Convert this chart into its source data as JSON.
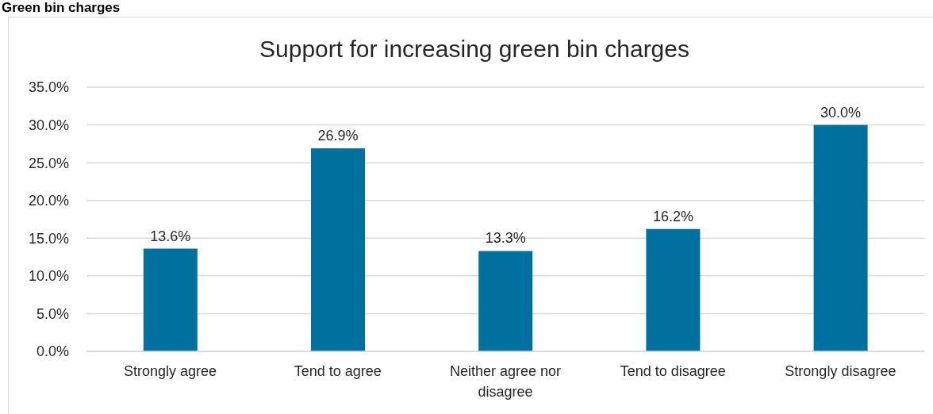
{
  "chart_data": {
    "type": "bar",
    "title": "Support for increasing green bin charges",
    "annotations": [
      "Green bin charges"
    ],
    "categories": [
      "Strongly agree",
      "Tend to agree",
      "Neither agree nor disagree",
      "Tend to disagree",
      "Strongly disagree"
    ],
    "values": [
      13.6,
      26.9,
      13.3,
      16.2,
      30.0
    ],
    "value_labels": [
      "13.6%",
      "26.9%",
      "13.3%",
      "16.2%",
      "30.0%"
    ],
    "color": "#00709f",
    "ylim": [
      0,
      35
    ],
    "yticks": [
      {
        "value": 0,
        "label": "0.0%"
      },
      {
        "value": 5,
        "label": "5.0%"
      },
      {
        "value": 10,
        "label": "10.0%"
      },
      {
        "value": 15,
        "label": "15.0%"
      },
      {
        "value": 20,
        "label": "20.0%"
      },
      {
        "value": 25,
        "label": "25.0%"
      },
      {
        "value": 30,
        "label": "30.0%"
      },
      {
        "value": 35,
        "label": "35.0%"
      }
    ],
    "grid": "y"
  }
}
